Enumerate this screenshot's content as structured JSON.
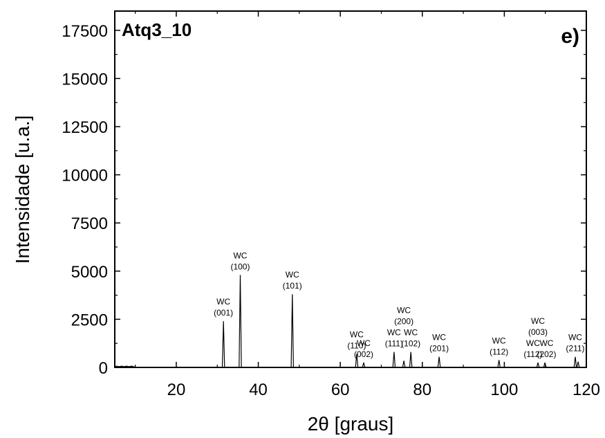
{
  "chart_data": {
    "type": "line",
    "xlabel": "2θ [graus]",
    "ylabel": "Intensidade [u.a.]",
    "sample_label": "Atq3_10",
    "panel_label": "e)",
    "xlim": [
      5,
      120
    ],
    "ylim": [
      0,
      18500
    ],
    "x_ticks": [
      20,
      40,
      60,
      80,
      100,
      120
    ],
    "y_ticks": [
      0,
      2500,
      5000,
      7500,
      10000,
      12500,
      15000,
      17500
    ],
    "x_tick_labels": [
      "20",
      "40",
      "60",
      "80",
      "100",
      "120"
    ],
    "y_tick_labels": [
      "0",
      "2500",
      "5000",
      "7500",
      "10000",
      "12500",
      "15000",
      "17500"
    ],
    "grid": false,
    "line_color": "#000000",
    "peaks": [
      {
        "x": 31.5,
        "y": 2400
      },
      {
        "x": 35.6,
        "y": 4800
      },
      {
        "x": 48.3,
        "y": 3800
      },
      {
        "x": 64.0,
        "y": 700
      },
      {
        "x": 65.7,
        "y": 250
      },
      {
        "x": 73.1,
        "y": 800
      },
      {
        "x": 75.5,
        "y": 350
      },
      {
        "x": 77.2,
        "y": 800
      },
      {
        "x": 84.1,
        "y": 550
      },
      {
        "x": 98.7,
        "y": 380
      },
      {
        "x": 108.2,
        "y": 250
      },
      {
        "x": 109.9,
        "y": 250
      },
      {
        "x": 117.3,
        "y": 550
      },
      {
        "x": 118.0,
        "y": 300
      }
    ],
    "annotations": [
      {
        "lines": [
          "WC",
          "(001)"
        ],
        "x": 31.5,
        "y": 2400
      },
      {
        "lines": [
          "WC",
          "(100)"
        ],
        "x": 35.6,
        "y": 4800
      },
      {
        "lines": [
          "WC",
          "(101)"
        ],
        "x": 48.3,
        "y": 3800
      },
      {
        "lines": [
          "WC",
          "(110)"
        ],
        "x": 64.0,
        "y": 700
      },
      {
        "lines": [
          "WC",
          "(002)"
        ],
        "x": 65.7,
        "y": 250
      },
      {
        "lines": [
          "WC",
          "(111)"
        ],
        "x": 73.1,
        "y": 800
      },
      {
        "lines": [
          "WC",
          "(200)"
        ],
        "x": 75.5,
        "y": 1950
      },
      {
        "lines": [
          "WC",
          "(102)"
        ],
        "x": 77.2,
        "y": 800
      },
      {
        "lines": [
          "WC",
          "(201)"
        ],
        "x": 84.1,
        "y": 550
      },
      {
        "lines": [
          "WC",
          "(112)"
        ],
        "x": 98.7,
        "y": 380
      },
      {
        "lines": [
          "WC",
          "(003)"
        ],
        "x": 108.2,
        "y": 1400
      },
      {
        "lines": [
          "WC",
          "(112)"
        ],
        "x": 107.0,
        "y": 250
      },
      {
        "lines": [
          "WC",
          "(202)"
        ],
        "x": 110.3,
        "y": 250
      },
      {
        "lines": [
          "WC",
          "(211)"
        ],
        "x": 117.3,
        "y": 550
      }
    ]
  }
}
